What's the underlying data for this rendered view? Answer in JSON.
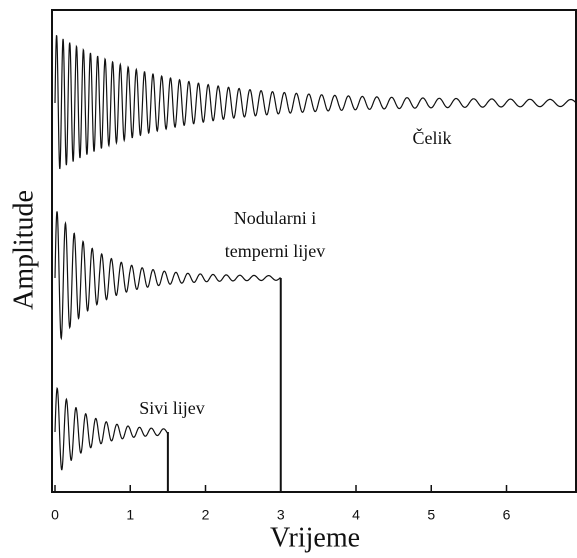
{
  "chart_data": {
    "type": "damped-oscillation",
    "xlabel": "Vrijeme",
    "ylabel": "Amplitude",
    "xlim": [
      0,
      6.95
    ],
    "xticks": [
      0,
      1,
      2,
      3,
      4,
      5,
      6
    ],
    "series": [
      {
        "name": "Čelik",
        "end": 6.95
      },
      {
        "name": "Nodularni i\ntemperni lijev",
        "end": 3
      },
      {
        "name": "Sivi lijev",
        "end": 1.5
      }
    ]
  }
}
